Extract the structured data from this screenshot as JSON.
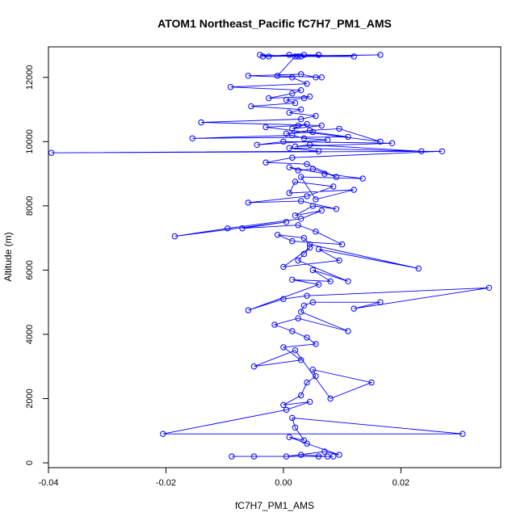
{
  "chart_data": {
    "type": "line",
    "title": "ATOM1 Northeast_Pacific fC7H7_PM1_AMS",
    "xlabel": "fC7H7_PM1_AMS",
    "ylabel": "Altitude (m)",
    "xlim": [
      -0.04,
      0.037
    ],
    "ylim": [
      -150,
      12950
    ],
    "x_ticks": [
      -0.04,
      -0.02,
      0.0,
      0.02
    ],
    "x_tick_labels": [
      "-0.04",
      "-0.02",
      "0.00",
      "0.02"
    ],
    "y_ticks": [
      0,
      2000,
      4000,
      6000,
      8000,
      10000,
      12000
    ],
    "y_tick_labels": [
      "0",
      "2000",
      "4000",
      "6000",
      "8000",
      "10000",
      "12000"
    ],
    "grid": false,
    "markers": "open-circle",
    "color": "#0000ff",
    "series": [
      {
        "x": [
          0.0085,
          -0.0088,
          -0.005,
          0.006,
          0.0075,
          0.003,
          0.0005,
          0.007,
          0.0095,
          0.004,
          0.001,
          0.0035,
          0.002,
          0.0015,
          0.0305,
          -0.0205,
          0.0005,
          0.0045,
          0.0,
          0.003,
          0.004,
          0.0055,
          0.005,
          0.015,
          0.008,
          0.002,
          -0.005,
          0.003,
          0.0,
          0.0055,
          0.004,
          0.0015,
          -0.0015,
          0.0025,
          0.011,
          0.003,
          0.0035,
          0.005,
          0.0165,
          0.012,
          0.035,
          0.004,
          0.0,
          -0.006,
          0.006,
          0.0015,
          0.008,
          0.005,
          0.011,
          0.0025,
          0.0035,
          0.0045,
          0.0,
          0.0095,
          0.006,
          0.023,
          0.0045,
          0.0035,
          -0.001,
          0.0015,
          0.01,
          0.0055,
          0.0025,
          -0.007,
          0.0005,
          -0.0185,
          -0.0095,
          0.003,
          0.0065,
          0.002,
          0.005,
          0.009,
          0.003,
          -0.006,
          0.004,
          0.0085,
          0.002,
          0.001,
          0.012,
          0.0055,
          0.003,
          0.0135,
          0.007,
          0.001,
          0.0025,
          0.005,
          0.009,
          0.004,
          -0.003,
          0.0015,
          0.027,
          -0.0395,
          0.006,
          0.001,
          0.0235,
          0.0045,
          0.002,
          0.0185,
          0.0,
          -0.0045,
          0.0075,
          0.0035,
          0.0015,
          -0.0155,
          0.011,
          0.005,
          0.0005,
          0.0045,
          0.0095,
          0.0165,
          -0.003,
          0.0025,
          0.004,
          0.0015,
          0.0065,
          -0.014,
          0.003,
          0.0055,
          0.001,
          0.003,
          -0.0055,
          0.002,
          0.0005,
          0.0035,
          0.0045,
          -0.0025,
          0.0015,
          0.003,
          -0.009,
          0.004,
          0.0015,
          -0.006,
          0.003,
          0.0055,
          0.0065,
          -0.001,
          0.002,
          0.012,
          0.0035,
          -0.0025,
          -0.004,
          0.0025,
          0.006,
          0.003,
          0.0165,
          -0.0035,
          0.001,
          0.006
        ],
        "y": [
          200,
          200,
          200,
          200,
          200,
          250,
          200,
          350,
          250,
          600,
          800,
          700,
          1100,
          1400,
          900,
          900,
          1650,
          1900,
          1800,
          2100,
          2500,
          2700,
          2900,
          2500,
          2000,
          3500,
          3000,
          3200,
          3600,
          3700,
          3900,
          4100,
          4300,
          4500,
          4100,
          4700,
          4900,
          5000,
          5000,
          4800,
          5450,
          5200,
          5100,
          4750,
          5550,
          5700,
          5650,
          6000,
          5650,
          6300,
          6500,
          6700,
          6100,
          6300,
          6650,
          6050,
          6800,
          7000,
          7100,
          6900,
          6800,
          7200,
          7400,
          7300,
          7500,
          7050,
          7300,
          7600,
          7850,
          7700,
          8000,
          7900,
          8150,
          8100,
          8300,
          8600,
          8750,
          8400,
          8500,
          8200,
          8900,
          8850,
          9000,
          9200,
          9100,
          9150,
          8900,
          9300,
          9350,
          9500,
          9700,
          9650,
          9700,
          9800,
          9700,
          9900,
          9850,
          9950,
          10000,
          9900,
          10050,
          10100,
          10200,
          10100,
          10150,
          10300,
          10250,
          10350,
          10400,
          10000,
          10450,
          10500,
          10550,
          10400,
          10500,
          10600,
          10700,
          10800,
          10900,
          11000,
          11100,
          11200,
          11300,
          11350,
          11400,
          11350,
          11500,
          11600,
          11700,
          11800,
          12000,
          12050,
          12100,
          12000,
          12000,
          12050,
          12650,
          12650,
          12700,
          12650,
          12700,
          12650,
          12700,
          12650,
          12700,
          12650,
          12700,
          12700
        ]
      }
    ]
  }
}
